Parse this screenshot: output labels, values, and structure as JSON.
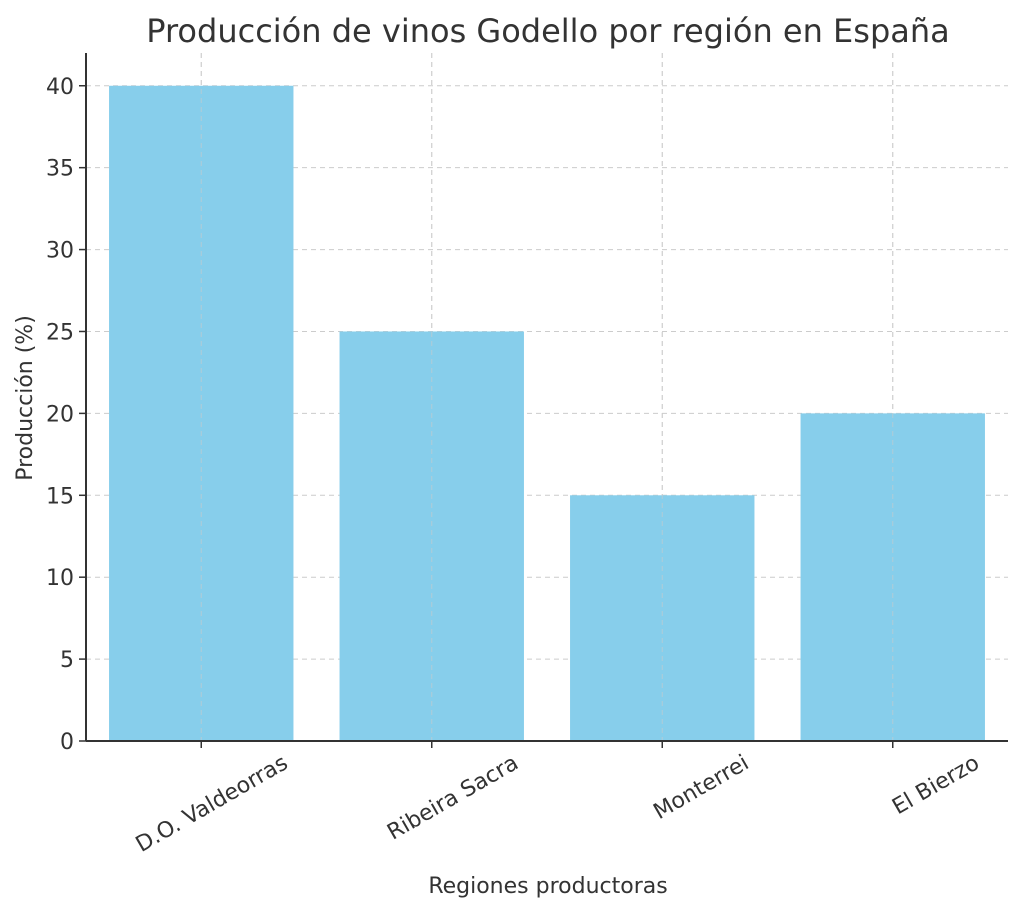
{
  "chart_data": {
    "type": "bar",
    "title": "Producción de vinos Godello por región en España",
    "xlabel": "Regiones productoras",
    "ylabel": "Producción (%)",
    "categories": [
      "D.O. Valdeorras",
      "Ribeira Sacra",
      "Monterrei",
      "El Bierzo"
    ],
    "values": [
      40,
      25,
      15,
      20
    ],
    "ylim": [
      0,
      42
    ],
    "yticks": [
      0,
      5,
      10,
      15,
      20,
      25,
      30,
      35,
      40
    ],
    "grid": true,
    "bar_color": "#87CEEB",
    "legend": "none"
  }
}
